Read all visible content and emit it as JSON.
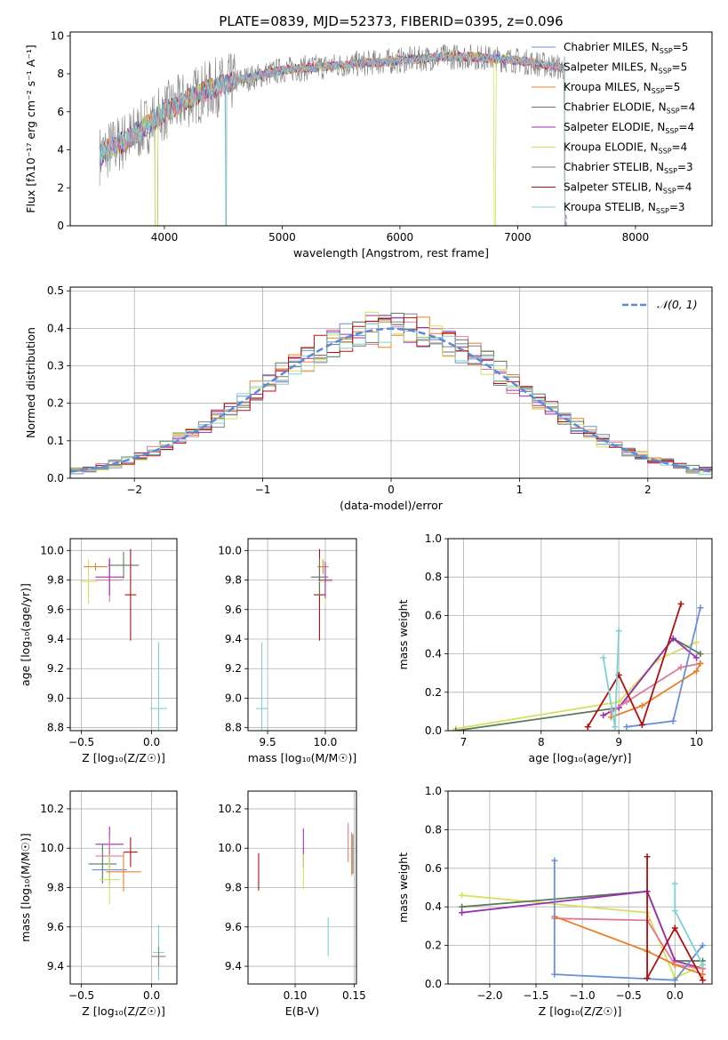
{
  "title": "PLATE=0839, MJD=52373, FIBERID=0395, z=0.096",
  "colors": {
    "chabrier_miles": "#6a8fd6",
    "salpeter_miles": "#e07a9a",
    "kroupa_miles": "#e8802a",
    "chabrier_elodie": "#5a7a5a",
    "salpeter_elodie": "#9a30b0",
    "kroupa_elodie": "#d6e060",
    "chabrier_stelib": "#808080",
    "salpeter_stelib": "#b01010",
    "kroupa_stelib": "#80d0d0"
  },
  "chart_data": [
    {
      "id": "spectrum",
      "type": "line",
      "xlabel": "wavelength [Angstrom, rest frame]",
      "ylabel": "Flux [fλ10⁻¹⁷ erg cm⁻² s⁻¹ A⁻¹]",
      "xlim": [
        3200,
        8650
      ],
      "ylim": [
        0,
        10.2
      ],
      "xticks": [
        "4000",
        "5000",
        "6000",
        "7000",
        "8000"
      ],
      "yticks": [
        "0",
        "2",
        "4",
        "6",
        "8",
        "10"
      ],
      "legend_position": "top-right",
      "legend": [
        "Chabrier MILES, N_SSP=5",
        "Salpeter MILES, N_SSP=5",
        "Kroupa MILES, N_SSP=5",
        "Chabrier ELODIE, N_SSP=4",
        "Salpeter ELODIE, N_SSP=4",
        "Kroupa ELODIE, N_SSP=4",
        "Chabrier STELIB, N_SSP=3",
        "Salpeter STELIB, N_SSP=4",
        "Kroupa STELIB, N_SSP=3"
      ],
      "continuum_x": [
        3450,
        3550,
        3700,
        3850,
        4000,
        4100,
        4200,
        4400,
        4600,
        4800,
        5000,
        5200,
        5400,
        5600,
        5800,
        6000,
        6200,
        6400,
        6600,
        6800,
        7000,
        7200,
        7400
      ],
      "continuum_y": [
        3.7,
        4.1,
        4.6,
        5.3,
        6.0,
        6.3,
        6.7,
        7.2,
        7.6,
        7.9,
        8.2,
        8.3,
        8.4,
        8.5,
        8.6,
        8.7,
        8.8,
        8.9,
        8.9,
        8.8,
        8.7,
        8.5,
        8.3
      ]
    },
    {
      "id": "residuals",
      "type": "bar",
      "xlabel": "(data-model)/error",
      "ylabel": "Normed distribution",
      "xlim": [
        -2.5,
        2.5
      ],
      "ylim": [
        0,
        0.51
      ],
      "xticks": [
        "−2",
        "−1",
        "0",
        "1",
        "2"
      ],
      "yticks": [
        "0.0",
        "0.1",
        "0.2",
        "0.3",
        "0.4",
        "0.5"
      ],
      "legend": [
        "𝒩(0, 1)"
      ],
      "legend_position": "top-right"
    },
    {
      "id": "age_vs_Z",
      "type": "scatter",
      "xlabel": "Z [log₁₀(Z/Z☉)]",
      "ylabel": "age  [log₁₀(age/yr)]",
      "xlim": [
        -0.58,
        0.18
      ],
      "ylim": [
        8.78,
        10.08
      ],
      "xticks": [
        "−0.5",
        "0.0"
      ],
      "yticks": [
        "8.8",
        "9.0",
        "9.2",
        "9.4",
        "9.6",
        "9.8",
        "10.0"
      ],
      "points": [
        {
          "x": -0.45,
          "y": 9.79,
          "xerr": 0.12,
          "yerr": 0.3,
          "c": "kroupa_elodie"
        },
        {
          "x": -0.4,
          "y": 9.89,
          "xerr": 0.17,
          "yerr": 0.05,
          "c": "kroupa_miles"
        },
        {
          "x": -0.2,
          "y": 9.9,
          "xerr": 0.22,
          "yerr": 0.18,
          "c": "chabrier_elodie"
        },
        {
          "x": -0.15,
          "y": 9.7,
          "xerr": 0.08,
          "yerr": 0.62,
          "c": "salpeter_stelib"
        },
        {
          "x": 0.05,
          "y": 8.93,
          "xerr": 0.12,
          "yerr": 0.9,
          "c": "kroupa_stelib"
        },
        {
          "x": -0.3,
          "y": 9.8,
          "xerr": 0.2,
          "yerr": 0.3,
          "c": "salpeter_miles"
        },
        {
          "x": -0.3,
          "y": 9.82,
          "xerr": 0.2,
          "yerr": 0.25,
          "c": "salpeter_elodie"
        }
      ]
    },
    {
      "id": "age_vs_mass",
      "type": "scatter",
      "xlabel": "mass [log₁₀(M/M☉)]",
      "ylabel": "",
      "xlim": [
        9.33,
        10.27
      ],
      "ylim": [
        8.78,
        10.08
      ],
      "xticks": [
        "9.5",
        "10.0"
      ],
      "yticks": [
        "8.8",
        "9.0",
        "9.2",
        "9.4",
        "9.6",
        "9.8",
        "10.0"
      ],
      "points": [
        {
          "x": 9.45,
          "y": 8.93,
          "xerr": 0.1,
          "yerr": 0.9,
          "c": "kroupa_stelib"
        },
        {
          "x": 9.95,
          "y": 9.7,
          "xerr": 0.1,
          "yerr": 0.62,
          "c": "salpeter_stelib"
        },
        {
          "x": 9.98,
          "y": 9.89,
          "xerr": 0.1,
          "yerr": 0.1,
          "c": "kroupa_miles"
        },
        {
          "x": 9.95,
          "y": 9.82,
          "xerr": 0.15,
          "yerr": 0.25,
          "c": "chabrier_elodie"
        },
        {
          "x": 10.0,
          "y": 9.79,
          "xerr": 0.12,
          "yerr": 0.3,
          "c": "kroupa_elodie"
        },
        {
          "x": 10.0,
          "y": 9.8,
          "xerr": 0.12,
          "yerr": 0.25,
          "c": "salpeter_elodie"
        }
      ]
    },
    {
      "id": "weight_vs_age",
      "type": "line",
      "xlabel": "age  [log₁₀(age/yr)]",
      "ylabel": "mass weight",
      "xlim": [
        6.8,
        10.2
      ],
      "ylim": [
        0,
        1.0
      ],
      "xticks": [
        "7",
        "8",
        "9",
        "10"
      ],
      "yticks": [
        "0.0",
        "0.2",
        "0.4",
        "0.6",
        "0.8",
        "1.0"
      ],
      "series": [
        {
          "c": "kroupa_elodie",
          "x": [
            6.9,
            9.0,
            9.5,
            10.0
          ],
          "y": [
            0.01,
            0.15,
            0.37,
            0.46
          ]
        },
        {
          "c": "chabrier_elodie",
          "x": [
            6.9,
            9.0,
            9.7,
            10.05
          ],
          "y": [
            0.0,
            0.12,
            0.48,
            0.4
          ]
        },
        {
          "c": "salpeter_elodie",
          "x": [
            8.8,
            9.0,
            9.7,
            10.0
          ],
          "y": [
            0.08,
            0.12,
            0.48,
            0.38
          ]
        },
        {
          "c": "salpeter_miles",
          "x": [
            8.9,
            9.1,
            9.8,
            10.05
          ],
          "y": [
            0.1,
            0.15,
            0.33,
            0.35
          ]
        },
        {
          "c": "kroupa_miles",
          "x": [
            8.9,
            9.3,
            10.0,
            10.05
          ],
          "y": [
            0.07,
            0.13,
            0.31,
            0.35
          ]
        },
        {
          "c": "chabrier_miles",
          "x": [
            9.1,
            9.7,
            10.05
          ],
          "y": [
            0.02,
            0.05,
            0.64
          ]
        },
        {
          "c": "salpeter_stelib",
          "x": [
            8.6,
            9.0,
            9.3,
            9.8
          ],
          "y": [
            0.02,
            0.29,
            0.03,
            0.66
          ]
        },
        {
          "c": "kroupa_stelib",
          "x": [
            8.8,
            8.95,
            9.0
          ],
          "y": [
            0.38,
            0.02,
            0.52
          ]
        }
      ]
    },
    {
      "id": "mass_vs_Z",
      "type": "scatter",
      "xlabel": "Z [log₁₀(Z/Z☉)]",
      "ylabel": "mass [log₁₀(M/M☉)]",
      "xlim": [
        -0.58,
        0.18
      ],
      "ylim": [
        9.31,
        10.29
      ],
      "xticks": [
        "−0.5",
        "0.0"
      ],
      "yticks": [
        "9.4",
        "9.6",
        "9.8",
        "10.0",
        "10.2"
      ],
      "points": [
        {
          "x": -0.3,
          "y": 10.02,
          "xerr": 0.2,
          "yerr": 0.18,
          "c": "salpeter_elodie"
        },
        {
          "x": -0.3,
          "y": 9.96,
          "xerr": 0.2,
          "yerr": 0.2,
          "c": "salpeter_miles"
        },
        {
          "x": -0.3,
          "y": 9.89,
          "xerr": 0.25,
          "yerr": 0.15,
          "c": "chabrier_miles"
        },
        {
          "x": -0.35,
          "y": 9.92,
          "xerr": 0.2,
          "yerr": 0.2,
          "c": "chabrier_elodie"
        },
        {
          "x": -0.3,
          "y": 9.84,
          "xerr": 0.15,
          "yerr": 0.25,
          "c": "kroupa_elodie"
        },
        {
          "x": -0.15,
          "y": 9.98,
          "xerr": 0.1,
          "yerr": 0.15,
          "c": "salpeter_stelib"
        },
        {
          "x": -0.2,
          "y": 9.88,
          "xerr": 0.25,
          "yerr": 0.2,
          "c": "kroupa_miles"
        },
        {
          "x": 0.05,
          "y": 9.47,
          "xerr": 0.08,
          "yerr": 0.28,
          "c": "kroupa_stelib"
        },
        {
          "x": 0.05,
          "y": 9.45,
          "xerr": 0.1,
          "yerr": 0.1,
          "c": "chabrier_stelib"
        }
      ]
    },
    {
      "id": "mass_vs_ebv",
      "type": "scatter",
      "xlabel": "E(B-V)",
      "ylabel": "",
      "xlim": [
        0.06,
        0.152
      ],
      "ylim": [
        9.31,
        10.29
      ],
      "xticks": [
        "0.10",
        "0.15"
      ],
      "yticks": [
        "9.4",
        "9.6",
        "9.8",
        "10.0",
        "10.2"
      ],
      "points": [
        {
          "x": 0.069,
          "y": 9.88,
          "xerr": 0,
          "yerr": 0.19,
          "c": "salpeter_stelib"
        },
        {
          "x": 0.107,
          "y": 10.0,
          "xerr": 0,
          "yerr": 0.2,
          "c": "salpeter_elodie"
        },
        {
          "x": 0.107,
          "y": 9.88,
          "xerr": 0,
          "yerr": 0.18,
          "c": "kroupa_elodie"
        },
        {
          "x": 0.128,
          "y": 9.55,
          "xerr": 0,
          "yerr": 0.2,
          "c": "kroupa_stelib"
        },
        {
          "x": 0.145,
          "y": 10.03,
          "xerr": 0,
          "yerr": 0.2,
          "c": "salpeter_miles"
        },
        {
          "x": 0.148,
          "y": 9.97,
          "xerr": 0,
          "yerr": 0.22,
          "c": "kroupa_miles"
        },
        {
          "x": 0.149,
          "y": 9.97,
          "xerr": 0,
          "yerr": 0.2,
          "c": "chabrier_stelib"
        }
      ]
    },
    {
      "id": "weight_vs_Z",
      "type": "line",
      "xlabel": "Z [log₁₀(Z/Z☉)]",
      "ylabel": "mass weight",
      "xlim": [
        -2.45,
        0.4
      ],
      "ylim": [
        0,
        1.0
      ],
      "xticks": [
        "−2.0",
        "−1.5",
        "−1.0",
        "−0.5",
        "0.0"
      ],
      "yticks": [
        "0.0",
        "0.2",
        "0.4",
        "0.6",
        "0.8",
        "1.0"
      ],
      "series": [
        {
          "c": "kroupa_elodie",
          "x": [
            -2.3,
            -0.3,
            0.0,
            0.3
          ],
          "y": [
            0.46,
            0.37,
            0.03,
            0.1
          ]
        },
        {
          "c": "chabrier_elodie",
          "x": [
            -2.3,
            -0.3,
            0.0,
            0.3
          ],
          "y": [
            0.4,
            0.48,
            0.12,
            0.12
          ]
        },
        {
          "c": "salpeter_elodie",
          "x": [
            -2.3,
            -0.3,
            0.0,
            0.3
          ],
          "y": [
            0.37,
            0.48,
            0.12,
            0.08
          ]
        },
        {
          "c": "salpeter_miles",
          "x": [
            -1.3,
            -0.3,
            0.0,
            0.3
          ],
          "y": [
            0.34,
            0.33,
            0.1,
            0.08
          ]
        },
        {
          "c": "kroupa_miles",
          "x": [
            -1.3,
            -0.3,
            0.0,
            0.3
          ],
          "y": [
            0.35,
            0.17,
            0.1,
            0.05
          ]
        },
        {
          "c": "chabrier_miles",
          "x": [
            -1.3,
            -1.3,
            0.0,
            0.3
          ],
          "y": [
            0.64,
            0.05,
            0.02,
            0.2
          ]
        },
        {
          "c": "salpeter_stelib",
          "x": [
            -0.3,
            -0.3,
            0.0,
            0.3
          ],
          "y": [
            0.66,
            0.03,
            0.29,
            0.02
          ]
        },
        {
          "c": "kroupa_stelib",
          "x": [
            0.0,
            0.0,
            0.3
          ],
          "y": [
            0.52,
            0.38,
            0.1
          ]
        }
      ]
    }
  ]
}
